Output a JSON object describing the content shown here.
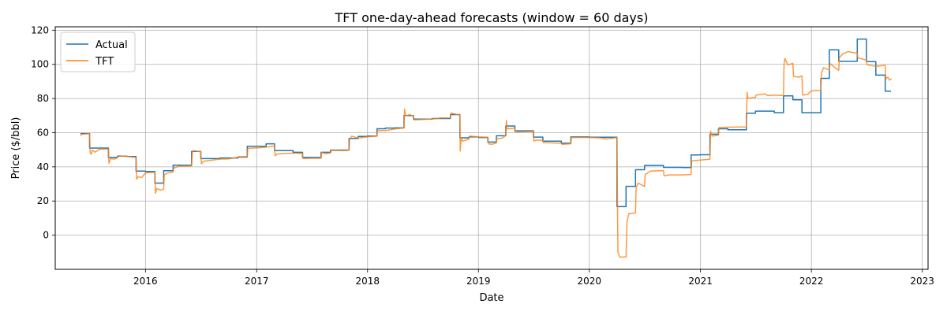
{
  "chart_data": {
    "type": "line",
    "title": "TFT one-day-ahead forecasts (window = 60 days)",
    "xlabel": "Date",
    "ylabel": "Price ($/bbl)",
    "xlim": [
      "2015-03-10",
      "2023-01-20"
    ],
    "ylim": [
      -20,
      122
    ],
    "x_ticks": [
      "2016",
      "2017",
      "2018",
      "2019",
      "2020",
      "2021",
      "2022",
      "2023"
    ],
    "y_ticks": [
      0,
      20,
      40,
      60,
      80,
      100,
      120
    ],
    "grid": true,
    "legend_position": "upper-left",
    "series": [
      {
        "name": "Actual",
        "color": "#1f77b4",
        "style": "step",
        "points": [
          [
            "2015-06-01",
            59.5
          ],
          [
            "2015-07-01",
            51
          ],
          [
            "2015-09-01",
            45.5
          ],
          [
            "2015-10-01",
            46.3
          ],
          [
            "2015-11-01",
            46
          ],
          [
            "2015-12-01",
            37.5
          ],
          [
            "2016-01-01",
            37.3
          ],
          [
            "2016-02-01",
            30.5
          ],
          [
            "2016-03-01",
            37.7
          ],
          [
            "2016-04-01",
            41
          ],
          [
            "2016-06-01",
            49
          ],
          [
            "2016-07-01",
            44.8
          ],
          [
            "2016-09-01",
            45.2
          ],
          [
            "2016-11-01",
            45.8
          ],
          [
            "2016-12-01",
            52
          ],
          [
            "2017-02-01",
            53.5
          ],
          [
            "2017-03-01",
            49.5
          ],
          [
            "2017-05-01",
            48.5
          ],
          [
            "2017-06-01",
            45.5
          ],
          [
            "2017-08-01",
            48.5
          ],
          [
            "2017-09-01",
            49.8
          ],
          [
            "2017-11-01",
            56.6
          ],
          [
            "2017-12-01",
            57.8
          ],
          [
            "2018-01-01",
            58
          ],
          [
            "2018-02-01",
            62.3
          ],
          [
            "2018-03-01",
            62.7
          ],
          [
            "2018-04-01",
            62.8
          ],
          [
            "2018-05-01",
            70
          ],
          [
            "2018-06-01",
            67.9
          ],
          [
            "2018-08-01",
            68.3
          ],
          [
            "2018-10-01",
            70.6
          ],
          [
            "2018-11-01",
            57
          ],
          [
            "2018-12-01",
            57.5
          ],
          [
            "2019-01-01",
            57.2
          ],
          [
            "2019-02-01",
            54.5
          ],
          [
            "2019-03-01",
            58.2
          ],
          [
            "2019-04-01",
            63.9
          ],
          [
            "2019-05-01",
            61.1
          ],
          [
            "2019-07-01",
            57.4
          ],
          [
            "2019-08-01",
            55
          ],
          [
            "2019-10-01",
            53.8
          ],
          [
            "2019-11-01",
            57.5
          ],
          [
            "2020-01-01",
            57.3
          ],
          [
            "2020-04-01",
            16.7
          ],
          [
            "2020-05-01",
            28.6
          ],
          [
            "2020-06-01",
            38.3
          ],
          [
            "2020-07-01",
            40.8
          ],
          [
            "2020-09-01",
            39.7
          ],
          [
            "2020-11-01",
            39.6
          ],
          [
            "2020-12-01",
            47
          ],
          [
            "2021-01-01",
            47.1
          ],
          [
            "2021-02-01",
            59.1
          ],
          [
            "2021-03-01",
            62.3
          ],
          [
            "2021-04-01",
            61.7
          ],
          [
            "2021-06-01",
            71.4
          ],
          [
            "2021-07-01",
            72.6
          ],
          [
            "2021-09-01",
            71.7
          ],
          [
            "2021-10-01",
            81.5
          ],
          [
            "2021-11-01",
            79.2
          ],
          [
            "2021-12-01",
            71.7
          ],
          [
            "2022-02-01",
            91.8
          ],
          [
            "2022-03-01",
            108.5
          ],
          [
            "2022-04-01",
            101.8
          ],
          [
            "2022-06-01",
            114.8
          ],
          [
            "2022-07-01",
            101.6
          ],
          [
            "2022-08-01",
            93.7
          ],
          [
            "2022-09-01",
            84.3
          ],
          [
            "2022-09-20",
            84.3
          ]
        ]
      },
      {
        "name": "TFT",
        "color": "#ff7f0e",
        "style": "line",
        "points": [
          [
            "2015-06-01",
            58.3
          ],
          [
            "2015-06-05",
            59
          ],
          [
            "2015-07-01",
            59.5
          ],
          [
            "2015-07-03",
            48.5
          ],
          [
            "2015-07-06",
            47.2
          ],
          [
            "2015-07-10",
            49.8
          ],
          [
            "2015-07-20",
            48.6
          ],
          [
            "2015-08-01",
            50.2
          ],
          [
            "2015-09-01",
            50.5
          ],
          [
            "2015-09-03",
            42
          ],
          [
            "2015-09-08",
            44.8
          ],
          [
            "2015-09-20",
            44.5
          ],
          [
            "2015-10-01",
            45.3
          ],
          [
            "2015-10-04",
            46.5
          ],
          [
            "2015-11-01",
            46
          ],
          [
            "2015-12-01",
            45.5
          ],
          [
            "2015-12-03",
            32.8
          ],
          [
            "2015-12-08",
            34.2
          ],
          [
            "2015-12-20",
            33.8
          ],
          [
            "2016-01-01",
            36.5
          ],
          [
            "2016-02-01",
            36.8
          ],
          [
            "2016-02-03",
            24.5
          ],
          [
            "2016-02-07",
            27.3
          ],
          [
            "2016-02-20",
            26.4
          ],
          [
            "2016-03-01",
            27
          ],
          [
            "2016-03-03",
            35.4
          ],
          [
            "2016-03-15",
            36.4
          ],
          [
            "2016-04-01",
            37
          ],
          [
            "2016-04-03",
            39.3
          ],
          [
            "2016-04-20",
            40.4
          ],
          [
            "2016-06-01",
            40.6
          ],
          [
            "2016-06-03",
            48.3
          ],
          [
            "2016-06-06",
            49.5
          ],
          [
            "2016-07-01",
            48.8
          ],
          [
            "2016-07-03",
            41.8
          ],
          [
            "2016-07-10",
            43.3
          ],
          [
            "2016-09-01",
            44.5
          ],
          [
            "2016-10-01",
            44.7
          ],
          [
            "2016-11-01",
            45.6
          ],
          [
            "2016-12-01",
            45.5
          ],
          [
            "2016-12-03",
            50.8
          ],
          [
            "2017-01-10",
            51.2
          ],
          [
            "2017-02-01",
            51.5
          ],
          [
            "2017-03-01",
            52.3
          ],
          [
            "2017-03-03",
            46.5
          ],
          [
            "2017-03-10",
            47.5
          ],
          [
            "2017-04-01",
            47.8
          ],
          [
            "2017-05-01",
            48
          ],
          [
            "2017-06-01",
            47.8
          ],
          [
            "2017-06-03",
            44.8
          ],
          [
            "2017-07-01",
            45
          ],
          [
            "2017-08-01",
            45
          ],
          [
            "2017-08-03",
            48.5
          ],
          [
            "2017-08-15",
            47.6
          ],
          [
            "2017-09-01",
            48.1
          ],
          [
            "2017-09-03",
            49.6
          ],
          [
            "2017-10-20",
            49.5
          ],
          [
            "2017-11-01",
            49.7
          ],
          [
            "2017-11-03",
            56.2
          ],
          [
            "2017-11-10",
            58
          ],
          [
            "2017-12-01",
            56.8
          ],
          [
            "2018-01-01",
            57.5
          ],
          [
            "2018-02-01",
            58
          ],
          [
            "2018-02-03",
            61.3
          ],
          [
            "2018-03-01",
            61.2
          ],
          [
            "2018-04-01",
            62.2
          ],
          [
            "2018-05-01",
            62.8
          ],
          [
            "2018-05-03",
            73.8
          ],
          [
            "2018-05-06",
            70
          ],
          [
            "2018-05-20",
            70.5
          ],
          [
            "2018-06-01",
            69.8
          ],
          [
            "2018-06-03",
            67.5
          ],
          [
            "2018-08-01",
            68
          ],
          [
            "2018-09-01",
            68.6
          ],
          [
            "2018-10-01",
            68.6
          ],
          [
            "2018-10-03",
            71.5
          ],
          [
            "2018-10-20",
            70.8
          ],
          [
            "2018-11-01",
            70.3
          ],
          [
            "2018-11-02",
            49.3
          ],
          [
            "2018-11-05",
            57
          ],
          [
            "2018-11-10",
            55
          ],
          [
            "2018-12-01",
            56.3
          ],
          [
            "2018-12-03",
            58
          ],
          [
            "2019-01-01",
            57.5
          ],
          [
            "2019-02-01",
            57.3
          ],
          [
            "2019-02-03",
            53.5
          ],
          [
            "2019-02-15",
            53.2
          ],
          [
            "2019-03-01",
            54
          ],
          [
            "2019-03-03",
            56.5
          ],
          [
            "2019-03-20",
            56.8
          ],
          [
            "2019-04-01",
            58.4
          ],
          [
            "2019-04-03",
            67.2
          ],
          [
            "2019-04-06",
            62.2
          ],
          [
            "2019-05-01",
            62.7
          ],
          [
            "2019-05-03",
            60.2
          ],
          [
            "2019-06-01",
            60.6
          ],
          [
            "2019-07-01",
            60.7
          ],
          [
            "2019-07-03",
            55
          ],
          [
            "2019-07-10",
            55.7
          ],
          [
            "2019-08-01",
            55.5
          ],
          [
            "2019-08-03",
            54.2
          ],
          [
            "2019-10-01",
            53.8
          ],
          [
            "2019-10-03",
            53.2
          ],
          [
            "2019-11-01",
            53.5
          ],
          [
            "2019-11-03",
            57.2
          ],
          [
            "2020-01-01",
            57.2
          ],
          [
            "2020-02-01",
            57
          ],
          [
            "2020-03-01",
            56.3
          ],
          [
            "2020-04-01",
            57.2
          ],
          [
            "2020-04-04",
            -10
          ],
          [
            "2020-04-10",
            -12.8
          ],
          [
            "2020-05-01",
            -12.8
          ],
          [
            "2020-05-04",
            8
          ],
          [
            "2020-05-10",
            12.5
          ],
          [
            "2020-06-01",
            13
          ],
          [
            "2020-06-03",
            27.8
          ],
          [
            "2020-06-10",
            30.5
          ],
          [
            "2020-07-01",
            28.5
          ],
          [
            "2020-07-03",
            35.5
          ],
          [
            "2020-07-20",
            37.5
          ],
          [
            "2020-09-01",
            37.8
          ],
          [
            "2020-09-03",
            34.8
          ],
          [
            "2020-09-20",
            35.3
          ],
          [
            "2020-11-01",
            35.3
          ],
          [
            "2020-12-01",
            35.5
          ],
          [
            "2020-12-03",
            43.5
          ],
          [
            "2021-01-01",
            44
          ],
          [
            "2021-02-01",
            44.5
          ],
          [
            "2021-02-03",
            60.8
          ],
          [
            "2021-02-08",
            58
          ],
          [
            "2021-03-01",
            58.5
          ],
          [
            "2021-03-03",
            63
          ],
          [
            "2021-04-01",
            63.2
          ],
          [
            "2021-06-01",
            63.4
          ],
          [
            "2021-06-03",
            83.5
          ],
          [
            "2021-06-06",
            80.2
          ],
          [
            "2021-07-01",
            80.7
          ],
          [
            "2021-07-03",
            82
          ],
          [
            "2021-08-01",
            82.7
          ],
          [
            "2021-08-10",
            81.7
          ],
          [
            "2021-09-01",
            82
          ],
          [
            "2021-10-01",
            81.7
          ],
          [
            "2021-10-03",
            100.2
          ],
          [
            "2021-10-06",
            103.5
          ],
          [
            "2021-10-15",
            99.8
          ],
          [
            "2021-11-01",
            100.5
          ],
          [
            "2021-11-03",
            93
          ],
          [
            "2021-11-20",
            92.5
          ],
          [
            "2021-12-01",
            93.3
          ],
          [
            "2021-12-03",
            82
          ],
          [
            "2021-12-20",
            82.5
          ],
          [
            "2022-01-01",
            84.5
          ],
          [
            "2022-02-01",
            84.8
          ],
          [
            "2022-02-03",
            95
          ],
          [
            "2022-02-10",
            98
          ],
          [
            "2022-03-01",
            96.8
          ],
          [
            "2022-03-03",
            100.5
          ],
          [
            "2022-03-20",
            98
          ],
          [
            "2022-04-01",
            96.5
          ],
          [
            "2022-04-03",
            104
          ],
          [
            "2022-04-15",
            106.2
          ],
          [
            "2022-05-01",
            107.5
          ],
          [
            "2022-06-01",
            106.5
          ],
          [
            "2022-06-03",
            103.8
          ],
          [
            "2022-07-01",
            102.5
          ],
          [
            "2022-07-03",
            99.8
          ],
          [
            "2022-08-01",
            98.8
          ],
          [
            "2022-09-01",
            99.4
          ],
          [
            "2022-09-03",
            91.5
          ],
          [
            "2022-09-10",
            92.5
          ],
          [
            "2022-09-15",
            90.8
          ],
          [
            "2022-09-22",
            91.7
          ]
        ]
      }
    ]
  }
}
